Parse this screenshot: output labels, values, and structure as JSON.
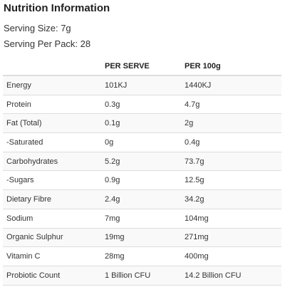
{
  "title": "Nutrition Information",
  "serving_size": "Serving Size: 7g",
  "serving_per_pack": "Serving Per Pack: 28",
  "table": {
    "headers": [
      "",
      "PER SERVE",
      "PER 100g"
    ],
    "rows": [
      [
        "Energy",
        "101KJ",
        "1440KJ"
      ],
      [
        "Protein",
        "0.3g",
        "4.7g"
      ],
      [
        "Fat (Total)",
        "0.1g",
        "2g"
      ],
      [
        "-Saturated",
        "0g",
        "0.4g"
      ],
      [
        "Carbohydrates",
        "5.2g",
        "73.7g"
      ],
      [
        "-Sugars",
        "0.9g",
        "12.5g"
      ],
      [
        "Dietary Fibre",
        "2.4g",
        "34.2g"
      ],
      [
        "Sodium",
        "7mg",
        "104mg"
      ],
      [
        "Organic Sulphur",
        "19mg",
        "271mg"
      ],
      [
        "Vitamin C",
        "28mg",
        "400mg"
      ],
      [
        "Probiotic Count",
        "1 Billion CFU",
        "14.2 Billion CFU"
      ]
    ]
  },
  "colors": {
    "stripe": "#f9f9f9",
    "border": "#dddddd",
    "text": "#333333"
  }
}
